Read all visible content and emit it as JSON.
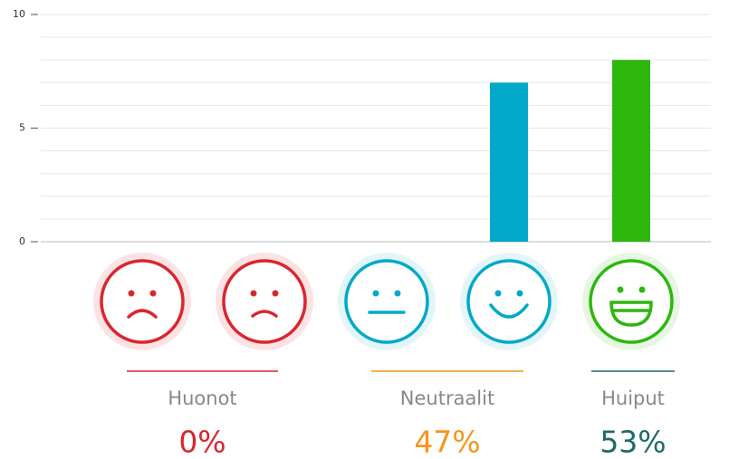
{
  "chart_data": {
    "type": "bar",
    "categories": [
      null,
      null,
      null,
      null,
      null
    ],
    "values": [
      0,
      0,
      0,
      7,
      8
    ],
    "colors": [
      "#d9262e",
      "#d9262e",
      "#00a9c9",
      "#00a9c9",
      "#2db70d"
    ],
    "ylim": [
      0,
      10
    ],
    "yticks": [
      0,
      5,
      10
    ],
    "minor_yticks": [
      1,
      2,
      3,
      4,
      6,
      7,
      8,
      9
    ],
    "grid": true,
    "groups": [
      {
        "name": "Huonot",
        "value": 0,
        "value_label": "0%",
        "color": "#d9262e"
      },
      {
        "name": "Neutraalit",
        "value": 47,
        "value_label": "47%",
        "color": "#f7941d"
      },
      {
        "name": "Huiput",
        "value": 53,
        "value_label": "53%",
        "color": "#1e6b66"
      }
    ]
  }
}
